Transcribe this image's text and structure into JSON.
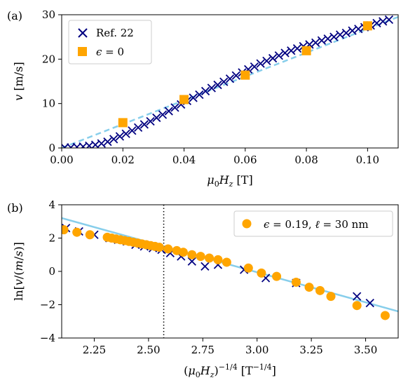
{
  "chart_data": [
    {
      "panel_label": "(a)",
      "type": "scatter",
      "xlabel": "μ₀H_z [T]",
      "ylabel": "v [m/s]",
      "xlim": [
        0.0,
        0.11
      ],
      "ylim": [
        0,
        30
      ],
      "xticks": [
        0.0,
        0.02,
        0.04,
        0.06,
        0.08,
        0.1
      ],
      "xtick_labels": [
        "0.00",
        "0.02",
        "0.04",
        "0.06",
        "0.08",
        "0.10"
      ],
      "yticks": [
        0,
        10,
        20,
        30
      ],
      "ytick_labels": [
        "0",
        "10",
        "20",
        "30"
      ],
      "legend_position": "top-left",
      "legend": [
        "Ref. 22",
        "ϵ = 0"
      ],
      "series": [
        {
          "name": "Ref. 22",
          "marker": "x",
          "color": "#000080",
          "x": [
            0.001,
            0.003,
            0.005,
            0.007,
            0.009,
            0.011,
            0.013,
            0.015,
            0.017,
            0.019,
            0.021,
            0.023,
            0.025,
            0.027,
            0.029,
            0.031,
            0.033,
            0.035,
            0.037,
            0.039,
            0.041,
            0.043,
            0.045,
            0.047,
            0.049,
            0.051,
            0.053,
            0.055,
            0.057,
            0.059,
            0.061,
            0.063,
            0.065,
            0.067,
            0.069,
            0.071,
            0.073,
            0.075,
            0.077,
            0.079,
            0.081,
            0.083,
            0.085,
            0.087,
            0.089,
            0.091,
            0.093,
            0.095,
            0.097,
            0.099,
            0.101,
            0.103,
            0.105,
            0.107
          ],
          "y": [
            0.1,
            0.1,
            0.2,
            0.3,
            0.5,
            0.7,
            1.0,
            1.4,
            2.0,
            2.6,
            3.2,
            3.9,
            4.6,
            5.3,
            6.0,
            6.8,
            7.5,
            8.3,
            9.1,
            9.8,
            10.6,
            11.3,
            12.0,
            12.8,
            13.5,
            14.2,
            14.9,
            15.6,
            16.3,
            17.0,
            17.7,
            18.3,
            19.0,
            19.6,
            20.2,
            20.8,
            21.4,
            21.9,
            22.4,
            22.9,
            23.3,
            23.7,
            24.2,
            24.6,
            25.0,
            25.5,
            25.9,
            26.4,
            26.8,
            27.2,
            27.6,
            28.1,
            28.5,
            28.9
          ]
        },
        {
          "name": "ϵ = 0",
          "marker": "s",
          "color": "#ffa500",
          "x": [
            0.02,
            0.04,
            0.06,
            0.08,
            0.1
          ],
          "y": [
            5.7,
            10.9,
            16.4,
            21.9,
            27.5
          ]
        },
        {
          "type": "line",
          "style": "dashed",
          "color": "#87ceeb",
          "x": [
            0.0,
            0.11
          ],
          "y": [
            0.0,
            29.5
          ]
        }
      ]
    },
    {
      "panel_label": "(b)",
      "type": "scatter",
      "xlabel": "(μ₀H_z)^(−1/4) [T^(−1/4)]",
      "ylabel": "ln[v/(m/s)]",
      "xlim": [
        2.1,
        3.65
      ],
      "ylim": [
        -4,
        4
      ],
      "xticks": [
        2.25,
        2.5,
        2.75,
        3.0,
        3.25,
        3.5
      ],
      "xtick_labels": [
        "2.25",
        "2.50",
        "2.75",
        "3.00",
        "3.25",
        "3.50"
      ],
      "yticks": [
        -4,
        -2,
        0,
        2,
        4
      ],
      "ytick_labels": [
        "−4",
        "−2",
        "0",
        "2",
        "4"
      ],
      "legend_position": "top-right",
      "legend": [
        "ϵ = 0.19, ℓ = 30 nm"
      ],
      "vline_x": 2.57,
      "series": [
        {
          "name": "Ref. 22",
          "marker": "x",
          "color": "#000080",
          "x": [
            2.12,
            2.18,
            2.25,
            2.32,
            2.36,
            2.4,
            2.44,
            2.48,
            2.52,
            2.56,
            2.6,
            2.65,
            2.7,
            2.76,
            2.82,
            2.94,
            3.04,
            3.18,
            3.46,
            3.52
          ],
          "y": [
            2.6,
            2.4,
            2.2,
            2.0,
            1.9,
            1.8,
            1.6,
            1.5,
            1.4,
            1.3,
            1.1,
            0.9,
            0.6,
            0.3,
            0.4,
            0.1,
            -0.4,
            -0.7,
            -1.5,
            -1.9
          ]
        },
        {
          "name": "ϵ = 0.19, ℓ = 30 nm",
          "marker": "o",
          "color": "#ffa500",
          "x": [
            2.11,
            2.17,
            2.23,
            2.31,
            2.33,
            2.35,
            2.37,
            2.39,
            2.41,
            2.43,
            2.45,
            2.47,
            2.49,
            2.51,
            2.53,
            2.55,
            2.59,
            2.63,
            2.66,
            2.7,
            2.74,
            2.78,
            2.82,
            2.86,
            2.96,
            3.02,
            3.09,
            3.18,
            3.24,
            3.29,
            3.34,
            3.46,
            3.59
          ],
          "y": [
            2.5,
            2.35,
            2.2,
            2.05,
            2.0,
            1.95,
            1.9,
            1.85,
            1.8,
            1.75,
            1.7,
            1.65,
            1.6,
            1.55,
            1.5,
            1.45,
            1.35,
            1.25,
            1.15,
            1.0,
            0.9,
            0.8,
            0.7,
            0.55,
            0.2,
            -0.1,
            -0.3,
            -0.65,
            -0.95,
            -1.15,
            -1.5,
            -2.05,
            -2.65
          ]
        },
        {
          "type": "line",
          "style": "solid",
          "color": "#87ceeb",
          "x": [
            2.1,
            3.65
          ],
          "y": [
            3.2,
            -2.4
          ]
        }
      ]
    }
  ]
}
